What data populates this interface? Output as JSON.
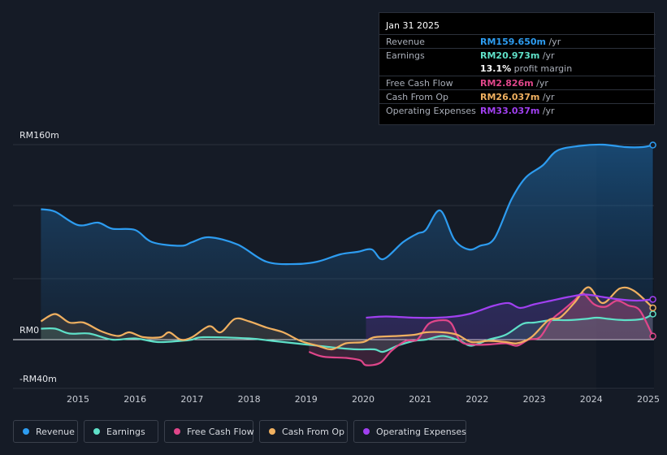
{
  "tooltip": {
    "date": "Jan 31 2025",
    "rows": [
      {
        "label": "Revenue",
        "value": "RM159.650m",
        "unit": " /yr",
        "color": "#2d9cf0"
      },
      {
        "label": "Earnings",
        "value": "RM20.973m",
        "unit": " /yr",
        "color": "#5fe0c8"
      },
      {
        "label": "",
        "value": "13.1%",
        "unit": " profit margin",
        "color": "#ffffff"
      },
      {
        "label": "Free Cash Flow",
        "value": "RM2.826m",
        "unit": " /yr",
        "color": "#e0468a"
      },
      {
        "label": "Cash From Op",
        "value": "RM26.037m",
        "unit": " /yr",
        "color": "#f0b060"
      },
      {
        "label": "Operating Expenses",
        "value": "RM33.037m",
        "unit": " /yr",
        "color": "#a040f0"
      }
    ]
  },
  "legend": [
    {
      "label": "Revenue",
      "color": "#2d9cf0"
    },
    {
      "label": "Earnings",
      "color": "#5fe0c8"
    },
    {
      "label": "Free Cash Flow",
      "color": "#e0468a"
    },
    {
      "label": "Cash From Op",
      "color": "#f0b060"
    },
    {
      "label": "Operating Expenses",
      "color": "#a040f0"
    }
  ],
  "chart_data": {
    "type": "line",
    "title": "",
    "xlabel": "",
    "ylabel": "",
    "y_tick_labels": [
      "RM160m",
      "RM0",
      "-RM40m"
    ],
    "x_tick_labels": [
      "2015",
      "2016",
      "2017",
      "2018",
      "2019",
      "2020",
      "2021",
      "2022",
      "2023",
      "2024",
      "2025"
    ],
    "ylim": [
      -40,
      160
    ],
    "xlim": [
      2014.3,
      2025.1
    ],
    "series": [
      {
        "name": "Revenue",
        "color": "#2d9cf0",
        "points": [
          [
            2014.35,
            107
          ],
          [
            2014.6,
            105
          ],
          [
            2015.0,
            94
          ],
          [
            2015.35,
            96
          ],
          [
            2015.6,
            91
          ],
          [
            2016.0,
            90
          ],
          [
            2016.3,
            80
          ],
          [
            2016.8,
            77
          ],
          [
            2017.0,
            80
          ],
          [
            2017.3,
            84
          ],
          [
            2017.8,
            78
          ],
          [
            2018.3,
            64
          ],
          [
            2018.8,
            62
          ],
          [
            2019.2,
            64
          ],
          [
            2019.6,
            70
          ],
          [
            2019.9,
            72
          ],
          [
            2020.15,
            74
          ],
          [
            2020.35,
            66
          ],
          [
            2020.7,
            80
          ],
          [
            2020.95,
            87
          ],
          [
            2021.1,
            90
          ],
          [
            2021.35,
            106
          ],
          [
            2021.6,
            82
          ],
          [
            2021.85,
            74
          ],
          [
            2022.05,
            77
          ],
          [
            2022.3,
            83
          ],
          [
            2022.6,
            115
          ],
          [
            2022.85,
            133
          ],
          [
            2023.15,
            143
          ],
          [
            2023.4,
            155
          ],
          [
            2023.8,
            159
          ],
          [
            2024.2,
            160
          ],
          [
            2024.6,
            158
          ],
          [
            2024.9,
            158
          ],
          [
            2025.08,
            159.65
          ]
        ]
      },
      {
        "name": "Earnings",
        "color": "#5fe0c8",
        "points": [
          [
            2014.35,
            9
          ],
          [
            2014.6,
            9
          ],
          [
            2014.85,
            5
          ],
          [
            2015.2,
            5
          ],
          [
            2015.6,
            0
          ],
          [
            2016.0,
            1
          ],
          [
            2016.4,
            -2
          ],
          [
            2016.8,
            -1
          ],
          [
            2017.0,
            0
          ],
          [
            2017.2,
            2
          ],
          [
            2018.0,
            1
          ],
          [
            2018.4,
            -1
          ],
          [
            2018.8,
            -3
          ],
          [
            2019.2,
            -5
          ],
          [
            2019.6,
            -7
          ],
          [
            2019.9,
            -8
          ],
          [
            2020.2,
            -8
          ],
          [
            2020.35,
            -10
          ],
          [
            2020.6,
            -5
          ],
          [
            2020.9,
            -1
          ],
          [
            2021.1,
            0
          ],
          [
            2021.4,
            3
          ],
          [
            2021.7,
            -1
          ],
          [
            2021.9,
            -5
          ],
          [
            2022.2,
            0
          ],
          [
            2022.5,
            4
          ],
          [
            2022.8,
            13
          ],
          [
            2023.0,
            14
          ],
          [
            2023.3,
            16
          ],
          [
            2023.6,
            16
          ],
          [
            2023.9,
            17
          ],
          [
            2024.1,
            18
          ],
          [
            2024.3,
            17
          ],
          [
            2024.6,
            16
          ],
          [
            2024.9,
            17
          ],
          [
            2025.08,
            20.97
          ]
        ]
      },
      {
        "name": "Free Cash Flow",
        "color": "#e0468a",
        "points": [
          [
            2019.05,
            -10
          ],
          [
            2019.3,
            -14
          ],
          [
            2019.7,
            -15
          ],
          [
            2019.95,
            -17
          ],
          [
            2020.05,
            -21
          ],
          [
            2020.3,
            -19
          ],
          [
            2020.5,
            -9
          ],
          [
            2020.75,
            -1
          ],
          [
            2020.95,
            0
          ],
          [
            2021.15,
            13
          ],
          [
            2021.4,
            16
          ],
          [
            2021.55,
            13
          ],
          [
            2021.7,
            -1
          ],
          [
            2021.9,
            -4
          ],
          [
            2022.2,
            -4
          ],
          [
            2022.5,
            -3
          ],
          [
            2022.7,
            -5
          ],
          [
            2022.9,
            0
          ],
          [
            2023.1,
            2
          ],
          [
            2023.3,
            16
          ],
          [
            2023.5,
            24
          ],
          [
            2023.7,
            32
          ],
          [
            2023.85,
            38
          ],
          [
            2024.05,
            29
          ],
          [
            2024.25,
            27
          ],
          [
            2024.45,
            32
          ],
          [
            2024.65,
            28
          ],
          [
            2024.85,
            24
          ],
          [
            2025.08,
            2.83
          ]
        ]
      },
      {
        "name": "Cash From Op",
        "color": "#f0b060",
        "points": [
          [
            2014.35,
            15
          ],
          [
            2014.6,
            21
          ],
          [
            2014.85,
            14
          ],
          [
            2015.1,
            14
          ],
          [
            2015.4,
            7
          ],
          [
            2015.7,
            3
          ],
          [
            2015.9,
            6
          ],
          [
            2016.15,
            2
          ],
          [
            2016.45,
            2
          ],
          [
            2016.6,
            6
          ],
          [
            2016.8,
            0
          ],
          [
            2017.0,
            2
          ],
          [
            2017.3,
            11
          ],
          [
            2017.5,
            6
          ],
          [
            2017.75,
            17
          ],
          [
            2018.0,
            15
          ],
          [
            2018.3,
            10
          ],
          [
            2018.6,
            6
          ],
          [
            2018.9,
            -1
          ],
          [
            2019.2,
            -5
          ],
          [
            2019.45,
            -8
          ],
          [
            2019.7,
            -3
          ],
          [
            2020.0,
            -2
          ],
          [
            2020.2,
            2
          ],
          [
            2020.6,
            3
          ],
          [
            2020.9,
            4
          ],
          [
            2021.1,
            6
          ],
          [
            2021.4,
            6
          ],
          [
            2021.65,
            4
          ],
          [
            2021.9,
            -2
          ],
          [
            2022.2,
            -1
          ],
          [
            2022.5,
            -2
          ],
          [
            2022.7,
            -3
          ],
          [
            2022.95,
            2
          ],
          [
            2023.25,
            16
          ],
          [
            2023.45,
            18
          ],
          [
            2023.7,
            30
          ],
          [
            2023.95,
            43
          ],
          [
            2024.2,
            30
          ],
          [
            2024.5,
            42
          ],
          [
            2024.75,
            40
          ],
          [
            2025.08,
            26.04
          ]
        ]
      },
      {
        "name": "Operating Expenses",
        "color": "#a040f0",
        "points": [
          [
            2020.05,
            18
          ],
          [
            2020.4,
            19
          ],
          [
            2020.9,
            18
          ],
          [
            2021.3,
            18
          ],
          [
            2021.6,
            19
          ],
          [
            2021.85,
            21
          ],
          [
            2022.05,
            24
          ],
          [
            2022.3,
            28
          ],
          [
            2022.55,
            30
          ],
          [
            2022.75,
            26
          ],
          [
            2023.0,
            29
          ],
          [
            2023.3,
            32
          ],
          [
            2023.6,
            35
          ],
          [
            2023.9,
            37
          ],
          [
            2024.2,
            35
          ],
          [
            2024.5,
            33
          ],
          [
            2024.8,
            32
          ],
          [
            2025.08,
            33.04
          ]
        ]
      }
    ]
  }
}
